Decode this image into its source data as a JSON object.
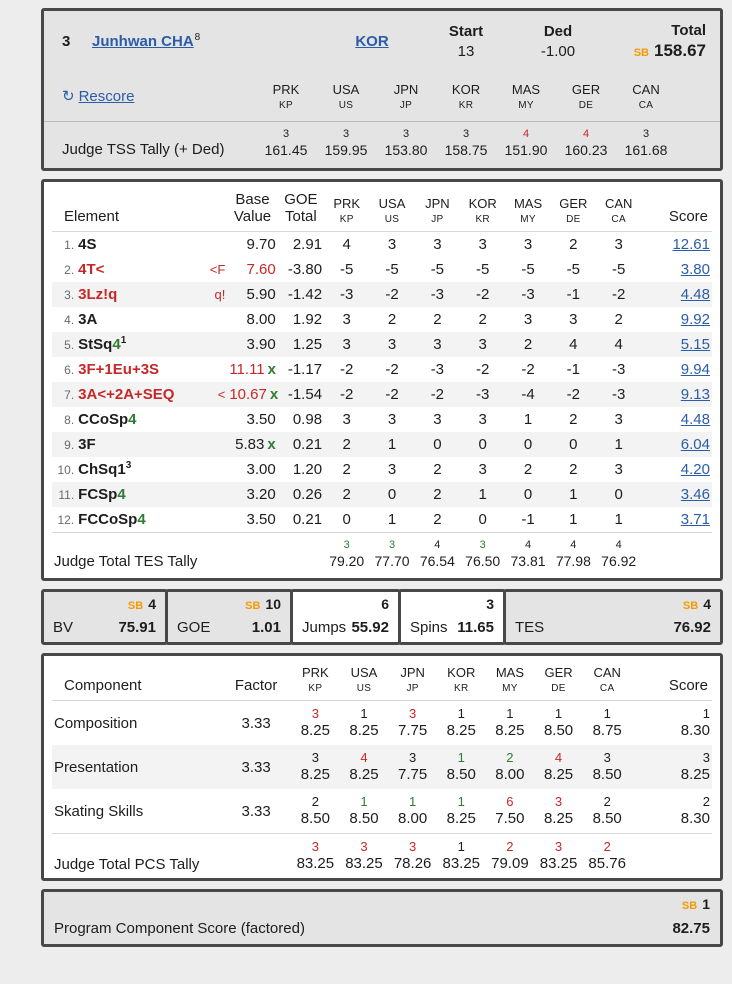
{
  "labels": {
    "sb": "SB"
  },
  "judges": {
    "nations": [
      "PRK",
      "USA",
      "JPN",
      "KOR",
      "MAS",
      "GER",
      "CAN"
    ],
    "codes": [
      "KP",
      "US",
      "JP",
      "KR",
      "MY",
      "DE",
      "CA"
    ]
  },
  "header": {
    "rank": "3",
    "name": "Junhwan CHA",
    "name_sup": "8",
    "nation": "KOR",
    "start_label": "Start",
    "start_value": "13",
    "ded_label": "Ded",
    "ded_value": "-1.00",
    "total_label": "Total",
    "total_value": "158.67",
    "rescore_icon": "↻",
    "rescore_label": "Rescore",
    "tss_label": "Judge TSS Tally (+ Ded)",
    "tss_tally": [
      {
        "rank": "3",
        "color": "black",
        "value": "161.45"
      },
      {
        "rank": "3",
        "color": "black",
        "value": "159.95"
      },
      {
        "rank": "3",
        "color": "black",
        "value": "153.80"
      },
      {
        "rank": "3",
        "color": "black",
        "value": "158.75"
      },
      {
        "rank": "4",
        "color": "red",
        "value": "151.90"
      },
      {
        "rank": "4",
        "color": "red",
        "value": "160.23"
      },
      {
        "rank": "3",
        "color": "black",
        "value": "161.68"
      }
    ]
  },
  "elements": {
    "headers": {
      "element": "Element",
      "base": "Base Value",
      "goe": "GOE Total",
      "score": "Score"
    },
    "rows": [
      {
        "num": "1.",
        "name": "4S",
        "name_color": "black",
        "level": "",
        "sup": "",
        "marker": "",
        "base": "9.70",
        "base_color": "black",
        "x_mark": "",
        "goe": "2.91",
        "judges": [
          "4",
          "3",
          "3",
          "3",
          "3",
          "2",
          "3"
        ],
        "score": "12.61"
      },
      {
        "num": "2.",
        "name": "4T<",
        "name_color": "red",
        "level": "",
        "sup": "",
        "marker": "<F",
        "base": "7.60",
        "base_color": "red",
        "x_mark": "",
        "goe": "-3.80",
        "judges": [
          "-5",
          "-5",
          "-5",
          "-5",
          "-5",
          "-5",
          "-5"
        ],
        "score": "3.80"
      },
      {
        "num": "3.",
        "name": "3Lz!q",
        "name_color": "red",
        "level": "",
        "sup": "",
        "marker": "q!",
        "base": "5.90",
        "base_color": "black",
        "x_mark": "",
        "goe": "-1.42",
        "judges": [
          "-3",
          "-2",
          "-3",
          "-2",
          "-3",
          "-1",
          "-2"
        ],
        "score": "4.48"
      },
      {
        "num": "4.",
        "name": "3A",
        "name_color": "black",
        "level": "",
        "sup": "",
        "marker": "",
        "base": "8.00",
        "base_color": "black",
        "x_mark": "",
        "goe": "1.92",
        "judges": [
          "3",
          "2",
          "2",
          "2",
          "3",
          "3",
          "2"
        ],
        "score": "9.92"
      },
      {
        "num": "5.",
        "name": "StSq",
        "name_color": "black",
        "level": "4",
        "sup": "1",
        "marker": "",
        "base": "3.90",
        "base_color": "black",
        "x_mark": "",
        "goe": "1.25",
        "judges": [
          "3",
          "3",
          "3",
          "3",
          "2",
          "4",
          "4"
        ],
        "score": "5.15"
      },
      {
        "num": "6.",
        "name": "3F+1Eu+3S",
        "name_color": "red",
        "level": "",
        "sup": "",
        "marker": "",
        "base": "11.11",
        "base_color": "red",
        "x_mark": "x",
        "goe": "-1.17",
        "judges": [
          "-2",
          "-2",
          "-3",
          "-2",
          "-2",
          "-1",
          "-3"
        ],
        "score": "9.94"
      },
      {
        "num": "7.",
        "name": "3A<+2A+SEQ",
        "name_color": "red",
        "level": "",
        "sup": "",
        "marker": "<",
        "base": "10.67",
        "base_color": "red",
        "x_mark": "x",
        "goe": "-1.54",
        "judges": [
          "-2",
          "-2",
          "-2",
          "-3",
          "-4",
          "-2",
          "-3"
        ],
        "score": "9.13"
      },
      {
        "num": "8.",
        "name": "CCoSp",
        "name_color": "black",
        "level": "4",
        "sup": "",
        "marker": "",
        "base": "3.50",
        "base_color": "black",
        "x_mark": "",
        "goe": "0.98",
        "judges": [
          "3",
          "3",
          "3",
          "3",
          "1",
          "2",
          "3"
        ],
        "score": "4.48"
      },
      {
        "num": "9.",
        "name": "3F",
        "name_color": "black",
        "level": "",
        "sup": "",
        "marker": "",
        "base": "5.83",
        "base_color": "black",
        "x_mark": "x",
        "goe": "0.21",
        "judges": [
          "2",
          "1",
          "0",
          "0",
          "0",
          "0",
          "1"
        ],
        "score": "6.04"
      },
      {
        "num": "10.",
        "name": "ChSq1",
        "name_color": "black",
        "level": "",
        "sup": "3",
        "marker": "",
        "base": "3.00",
        "base_color": "black",
        "x_mark": "",
        "goe": "1.20",
        "judges": [
          "2",
          "3",
          "2",
          "3",
          "2",
          "2",
          "3"
        ],
        "score": "4.20"
      },
      {
        "num": "11.",
        "name": "FCSp",
        "name_color": "black",
        "level": "4",
        "sup": "",
        "marker": "",
        "base": "3.20",
        "base_color": "black",
        "x_mark": "",
        "goe": "0.26",
        "judges": [
          "2",
          "0",
          "2",
          "1",
          "0",
          "1",
          "0"
        ],
        "score": "3.46"
      },
      {
        "num": "12.",
        "name": "FCCoSp",
        "name_color": "black",
        "level": "4",
        "sup": "",
        "marker": "",
        "base": "3.50",
        "base_color": "black",
        "x_mark": "",
        "goe": "0.21",
        "judges": [
          "0",
          "1",
          "2",
          "0",
          "-1",
          "1",
          "1"
        ],
        "score": "3.71"
      }
    ],
    "totals": {
      "label": "Judge Total TES Tally",
      "tally": [
        {
          "rank": "3",
          "color": "green",
          "value": "79.20"
        },
        {
          "rank": "3",
          "color": "green",
          "value": "77.70"
        },
        {
          "rank": "4",
          "color": "black",
          "value": "76.54"
        },
        {
          "rank": "3",
          "color": "green",
          "value": "76.50"
        },
        {
          "rank": "4",
          "color": "black",
          "value": "73.81"
        },
        {
          "rank": "4",
          "color": "black",
          "value": "77.98"
        },
        {
          "rank": "4",
          "color": "black",
          "value": "76.92"
        }
      ]
    }
  },
  "summary": {
    "boxes": [
      {
        "label": "BV",
        "value": "75.91",
        "badge": "4",
        "sb": true,
        "shaded": true
      },
      {
        "label": "GOE",
        "value": "1.01",
        "badge": "10",
        "sb": true,
        "shaded": true
      },
      {
        "label": "Jumps",
        "value": "55.92",
        "badge": "6",
        "sb": false,
        "shaded": false
      },
      {
        "label": "Spins",
        "value": "11.65",
        "badge": "3",
        "sb": false,
        "shaded": false
      },
      {
        "label": "TES",
        "value": "76.92",
        "badge": "4",
        "sb": true,
        "shaded": true
      }
    ]
  },
  "components": {
    "headers": {
      "component": "Component",
      "factor": "Factor",
      "score": "Score"
    },
    "rows": [
      {
        "name": "Composition",
        "factor": "3.33",
        "judges": [
          {
            "rank": "3",
            "color": "red",
            "value": "8.25"
          },
          {
            "rank": "1",
            "color": "black",
            "value": "8.25"
          },
          {
            "rank": "3",
            "color": "red",
            "value": "7.75"
          },
          {
            "rank": "1",
            "color": "black",
            "value": "8.25"
          },
          {
            "rank": "1",
            "color": "black",
            "value": "8.25"
          },
          {
            "rank": "1",
            "color": "black",
            "value": "8.50"
          },
          {
            "rank": "1",
            "color": "black",
            "value": "8.75"
          }
        ],
        "score": {
          "rank": "1",
          "color": "black",
          "value": "8.30"
        }
      },
      {
        "name": "Presentation",
        "factor": "3.33",
        "judges": [
          {
            "rank": "3",
            "color": "black",
            "value": "8.25"
          },
          {
            "rank": "4",
            "color": "red",
            "value": "8.25"
          },
          {
            "rank": "3",
            "color": "black",
            "value": "7.75"
          },
          {
            "rank": "1",
            "color": "green",
            "value": "8.50"
          },
          {
            "rank": "2",
            "color": "green",
            "value": "8.00"
          },
          {
            "rank": "4",
            "color": "red",
            "value": "8.25"
          },
          {
            "rank": "3",
            "color": "black",
            "value": "8.50"
          }
        ],
        "score": {
          "rank": "3",
          "color": "black",
          "value": "8.25"
        }
      },
      {
        "name": "Skating Skills",
        "factor": "3.33",
        "judges": [
          {
            "rank": "2",
            "color": "black",
            "value": "8.50"
          },
          {
            "rank": "1",
            "color": "green",
            "value": "8.50"
          },
          {
            "rank": "1",
            "color": "green",
            "value": "8.00"
          },
          {
            "rank": "1",
            "color": "green",
            "value": "8.25"
          },
          {
            "rank": "6",
            "color": "red",
            "value": "7.50"
          },
          {
            "rank": "3",
            "color": "red",
            "value": "8.25"
          },
          {
            "rank": "2",
            "color": "black",
            "value": "8.50"
          }
        ],
        "score": {
          "rank": "2",
          "color": "black",
          "value": "8.30"
        }
      }
    ],
    "totals": {
      "label": "Judge Total PCS Tally",
      "tally": [
        {
          "rank": "3",
          "color": "red",
          "value": "83.25"
        },
        {
          "rank": "3",
          "color": "red",
          "value": "83.25"
        },
        {
          "rank": "3",
          "color": "red",
          "value": "78.26"
        },
        {
          "rank": "1",
          "color": "black",
          "value": "83.25"
        },
        {
          "rank": "2",
          "color": "red",
          "value": "79.09"
        },
        {
          "rank": "3",
          "color": "red",
          "value": "83.25"
        },
        {
          "rank": "2",
          "color": "red",
          "value": "85.76"
        }
      ]
    }
  },
  "footer": {
    "label": "Program Component Score (factored)",
    "badge": "1",
    "value": "82.75"
  },
  "colors": {
    "link_blue": "#2a5ca8",
    "error_red": "#c62828",
    "good_green": "#2e7d32",
    "season_best_orange": "#f59a00"
  }
}
